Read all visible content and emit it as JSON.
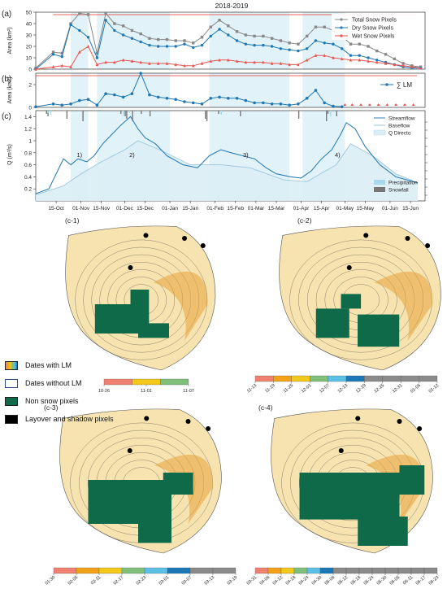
{
  "top_title": "2018-2019",
  "panel_labels": [
    "(a)",
    "(b)",
    "(c)"
  ],
  "map_labels": [
    "(c-1)",
    "(c-2)",
    "(c-3)",
    "(c-4)"
  ],
  "map_legend": [
    {
      "label": "Dates with LM",
      "color": "#e8b64a",
      "kind": "gradient"
    },
    {
      "label": "Dates without LM",
      "color": "#ffffff",
      "kind": "outline"
    },
    {
      "label": "Non snow pixels",
      "color": "#0f6a4a",
      "kind": "fill"
    },
    {
      "label": "Layover and shadow pixels",
      "color": "#000000",
      "kind": "fill"
    }
  ],
  "colorbars": {
    "c1": {
      "ticks": [
        "10-26",
        "11-01",
        "11-07"
      ],
      "colors": [
        "#f08070",
        "#f2c81a",
        "#7fbf7a"
      ]
    },
    "c2": {
      "ticks": [
        "11-13",
        "11-19",
        "11-25",
        "12-01",
        "12-07",
        "12-13",
        "12-19",
        "12-25",
        "12-31",
        "01-06",
        "01-12"
      ],
      "colors": [
        "#f08070",
        "#f4a11a",
        "#f2c81a",
        "#7fbf7a",
        "#5bc0e6",
        "#1a78b8",
        "#8a8a8a",
        "#8a8a8a",
        "#8a8a8a",
        "#8a8a8a"
      ]
    },
    "c3": {
      "ticks": [
        "01-30",
        "02-05",
        "02-11",
        "02-17",
        "02-23",
        "03-01",
        "03-07",
        "03-13",
        "03-19"
      ],
      "colors": [
        "#f08070",
        "#f4a11a",
        "#f2c81a",
        "#7fbf7a",
        "#5bc0e6",
        "#1a78b8",
        "#8a8a8a",
        "#8a8a8a"
      ]
    },
    "c4": {
      "ticks": [
        "03-31",
        "04-06",
        "04-12",
        "04-18",
        "04-24",
        "04-30",
        "05-06",
        "05-12",
        "05-18",
        "05-24",
        "05-30",
        "06-05",
        "06-11",
        "06-17",
        "06-23"
      ],
      "colors": [
        "#f08070",
        "#f4a11a",
        "#f2c81a",
        "#7fbf7a",
        "#5bc0e6",
        "#1a78b8",
        "#8a8a8a",
        "#8a8a8a",
        "#8a8a8a",
        "#8a8a8a",
        "#8a8a8a",
        "#8a8a8a",
        "#8a8a8a",
        "#8a8a8a"
      ]
    }
  },
  "chart_data": [
    {
      "type": "line",
      "panel": "(a)",
      "title": "2018-2019",
      "ylabel": "Area (km²)",
      "ylim": [
        0,
        50
      ],
      "yticks": [
        0,
        10,
        20,
        30,
        40,
        50
      ],
      "x_range": [
        "2018-10-01",
        "2019-06-25"
      ],
      "legend_position": "top-right",
      "series": [
        {
          "name": "Total Snow Pixels",
          "color": "#888888",
          "marker": "square",
          "x": [
            "2018-10-01",
            "2018-10-13",
            "2018-10-19",
            "2018-10-25",
            "2018-10-31",
            "2018-11-06",
            "2018-11-12",
            "2018-11-18",
            "2018-11-24",
            "2018-11-30",
            "2018-12-06",
            "2018-12-12",
            "2018-12-18",
            "2018-12-24",
            "2018-12-30",
            "2019-01-05",
            "2019-01-11",
            "2019-01-17",
            "2019-01-23",
            "2019-01-29",
            "2019-02-04",
            "2019-02-10",
            "2019-02-16",
            "2019-02-22",
            "2019-02-28",
            "2019-03-06",
            "2019-03-12",
            "2019-03-18",
            "2019-03-24",
            "2019-03-30",
            "2019-04-05",
            "2019-04-11",
            "2019-04-17",
            "2019-04-23",
            "2019-04-29",
            "2019-05-05",
            "2019-05-11",
            "2019-05-17",
            "2019-05-23",
            "2019-05-29",
            "2019-06-04",
            "2019-06-10",
            "2019-06-16",
            "2019-06-22"
          ],
          "values": [
            1,
            15,
            14,
            40,
            49,
            48,
            14,
            49,
            40,
            38,
            34,
            31,
            27,
            26,
            26,
            25,
            25,
            23,
            28,
            37,
            43,
            38,
            33,
            30,
            29,
            29,
            27,
            25,
            23,
            22,
            29,
            37,
            37,
            34,
            29,
            22,
            22,
            20,
            16,
            13,
            9,
            5,
            3,
            2
          ]
        },
        {
          "name": "Dry Snow Pixels",
          "color": "#1f77b4",
          "marker": "circle",
          "x": [
            "2018-10-01",
            "2018-10-13",
            "2018-10-19",
            "2018-10-25",
            "2018-10-31",
            "2018-11-06",
            "2018-11-12",
            "2018-11-18",
            "2018-11-24",
            "2018-11-30",
            "2018-12-06",
            "2018-12-12",
            "2018-12-18",
            "2018-12-24",
            "2018-12-30",
            "2019-01-05",
            "2019-01-11",
            "2019-01-17",
            "2019-01-23",
            "2019-01-29",
            "2019-02-04",
            "2019-02-10",
            "2019-02-16",
            "2019-02-22",
            "2019-02-28",
            "2019-03-06",
            "2019-03-12",
            "2019-03-18",
            "2019-03-24",
            "2019-03-30",
            "2019-04-05",
            "2019-04-11",
            "2019-04-17",
            "2019-04-23",
            "2019-04-29",
            "2019-05-05",
            "2019-05-11",
            "2019-05-17",
            "2019-05-23",
            "2019-05-29",
            "2019-06-04",
            "2019-06-10",
            "2019-06-16",
            "2019-06-22"
          ],
          "values": [
            0,
            13,
            11,
            39,
            34,
            28,
            10,
            43,
            34,
            30,
            27,
            24,
            21,
            20,
            20,
            20,
            22,
            19,
            21,
            29,
            35,
            30,
            25,
            22,
            21,
            21,
            20,
            18,
            17,
            16,
            18,
            25,
            23,
            22,
            18,
            12,
            12,
            10,
            8,
            6,
            4,
            2,
            1,
            1
          ]
        },
        {
          "name": "Wet Snow Pixels",
          "color": "#e8554e",
          "marker": "triangle",
          "x": [
            "2018-10-01",
            "2018-10-13",
            "2018-10-19",
            "2018-10-25",
            "2018-10-31",
            "2018-11-06",
            "2018-11-12",
            "2018-11-18",
            "2018-11-24",
            "2018-11-30",
            "2018-12-06",
            "2018-12-12",
            "2018-12-18",
            "2018-12-24",
            "2018-12-30",
            "2019-01-05",
            "2019-01-11",
            "2019-01-17",
            "2019-01-23",
            "2019-01-29",
            "2019-02-04",
            "2019-02-10",
            "2019-02-16",
            "2019-02-22",
            "2019-02-28",
            "2019-03-06",
            "2019-03-12",
            "2019-03-18",
            "2019-03-24",
            "2019-03-30",
            "2019-04-05",
            "2019-04-11",
            "2019-04-17",
            "2019-04-23",
            "2019-04-29",
            "2019-05-05",
            "2019-05-11",
            "2019-05-17",
            "2019-05-23",
            "2019-05-29",
            "2019-06-04",
            "2019-06-10",
            "2019-06-16",
            "2019-06-22"
          ],
          "values": [
            0,
            2,
            3,
            2,
            15,
            20,
            4,
            6,
            6,
            8,
            7,
            6,
            5,
            5,
            5,
            4,
            3,
            3,
            5,
            7,
            8,
            8,
            7,
            6,
            6,
            6,
            5,
            5,
            4,
            4,
            8,
            12,
            12,
            10,
            9,
            8,
            8,
            7,
            6,
            5,
            4,
            3,
            2,
            1
          ]
        }
      ]
    },
    {
      "type": "line",
      "panel": "(b)",
      "ylabel": "Area (km²)",
      "ylim": [
        0,
        3
      ],
      "yticks": [
        0,
        2
      ],
      "legend_position": "right",
      "series": [
        {
          "name": "∑ LM",
          "color": "#1f77b4",
          "marker": "circle",
          "x": [
            "2018-10-01",
            "2018-10-13",
            "2018-10-19",
            "2018-10-25",
            "2018-10-31",
            "2018-11-06",
            "2018-11-12",
            "2018-11-18",
            "2018-11-24",
            "2018-11-30",
            "2018-12-06",
            "2018-12-12",
            "2018-12-18",
            "2018-12-24",
            "2018-12-30",
            "2019-01-05",
            "2019-01-11",
            "2019-01-17",
            "2019-01-23",
            "2019-01-29",
            "2019-02-04",
            "2019-02-10",
            "2019-02-16",
            "2019-02-22",
            "2019-02-28",
            "2019-03-06",
            "2019-03-12",
            "2019-03-18",
            "2019-03-24",
            "2019-03-30",
            "2019-04-05",
            "2019-04-11",
            "2019-04-17",
            "2019-04-23",
            "2019-04-29"
          ],
          "values": [
            0.05,
            0.3,
            0.2,
            0.3,
            0.6,
            0.7,
            0.2,
            1.2,
            1.1,
            0.9,
            1.2,
            3.0,
            1.1,
            0.9,
            0.8,
            0.7,
            0.5,
            0.4,
            0.3,
            0.8,
            0.9,
            0.8,
            0.8,
            0.6,
            0.4,
            0.4,
            0.3,
            0.3,
            0.2,
            0.3,
            0.8,
            1.5,
            0.4,
            0.1,
            0.05
          ]
        }
      ]
    },
    {
      "type": "line",
      "panel": "(c)",
      "ylabel": "Q (m³/s)",
      "ylim": [
        0,
        1.5
      ],
      "yticks": [
        0.2,
        0.4,
        0.6,
        0.8,
        1.0,
        1.2,
        1.4
      ],
      "x_tick_labels": [
        "15-Oct",
        "01-Nov",
        "15-Nov",
        "01-Dec",
        "15-Dec",
        "01-Jan",
        "15-Jan",
        "01-Feb",
        "15-Feb",
        "01-Mar",
        "15-Mar",
        "01-Apr",
        "15-Apr",
        "01-May",
        "15-May",
        "01-Jun",
        "15-Jun"
      ],
      "legend_position": "top-right",
      "period_labels": [
        "1)",
        "2)",
        "3)",
        "4)"
      ],
      "series": [
        {
          "name": "Streamflow",
          "color": "#2f7fb6",
          "x": [
            "2018-10-01",
            "2018-10-10",
            "2018-10-20",
            "2018-10-25",
            "2018-10-30",
            "2018-11-05",
            "2018-11-10",
            "2018-11-16",
            "2018-11-22",
            "2018-11-28",
            "2018-12-05",
            "2018-12-10",
            "2018-12-15",
            "2018-12-22",
            "2018-12-30",
            "2019-01-10",
            "2019-01-20",
            "2019-01-28",
            "2019-02-05",
            "2019-02-12",
            "2019-02-20",
            "2019-02-28",
            "2019-03-08",
            "2019-03-15",
            "2019-03-25",
            "2019-04-01",
            "2019-04-08",
            "2019-04-15",
            "2019-04-22",
            "2019-04-28",
            "2019-05-02",
            "2019-05-08",
            "2019-05-15",
            "2019-05-25",
            "2019-06-05",
            "2019-06-20"
          ],
          "values": [
            0.12,
            0.2,
            0.7,
            0.6,
            0.7,
            0.65,
            0.75,
            0.95,
            1.1,
            1.25,
            1.4,
            1.2,
            1.05,
            0.95,
            0.75,
            0.6,
            0.55,
            0.75,
            0.85,
            0.8,
            0.75,
            0.7,
            0.55,
            0.45,
            0.4,
            0.38,
            0.5,
            0.7,
            0.85,
            1.1,
            1.3,
            1.2,
            0.9,
            0.6,
            0.4,
            0.3
          ]
        },
        {
          "name": "Baseflow",
          "color": "#9cc6dc",
          "x": [
            "2018-10-01",
            "2018-10-20",
            "2018-11-01",
            "2018-11-15",
            "2018-12-01",
            "2018-12-10",
            "2018-12-25",
            "2019-01-15",
            "2019-02-05",
            "2019-02-25",
            "2019-03-20",
            "2019-04-05",
            "2019-04-25",
            "2019-05-05",
            "2019-05-20",
            "2019-06-05",
            "2019-06-20"
          ],
          "values": [
            0.1,
            0.25,
            0.45,
            0.65,
            0.85,
            1.0,
            0.85,
            0.6,
            0.6,
            0.55,
            0.35,
            0.32,
            0.6,
            0.95,
            0.75,
            0.45,
            0.3
          ]
        },
        {
          "name": "Q Directo",
          "color": "#dcedf5"
        }
      ],
      "secondary_axis": {
        "ylabel": "",
        "series": [
          {
            "name": "Precipitation",
            "color": "#a8d8ea"
          },
          {
            "name": "Snowfall",
            "color": "#777777"
          }
        ]
      }
    }
  ]
}
